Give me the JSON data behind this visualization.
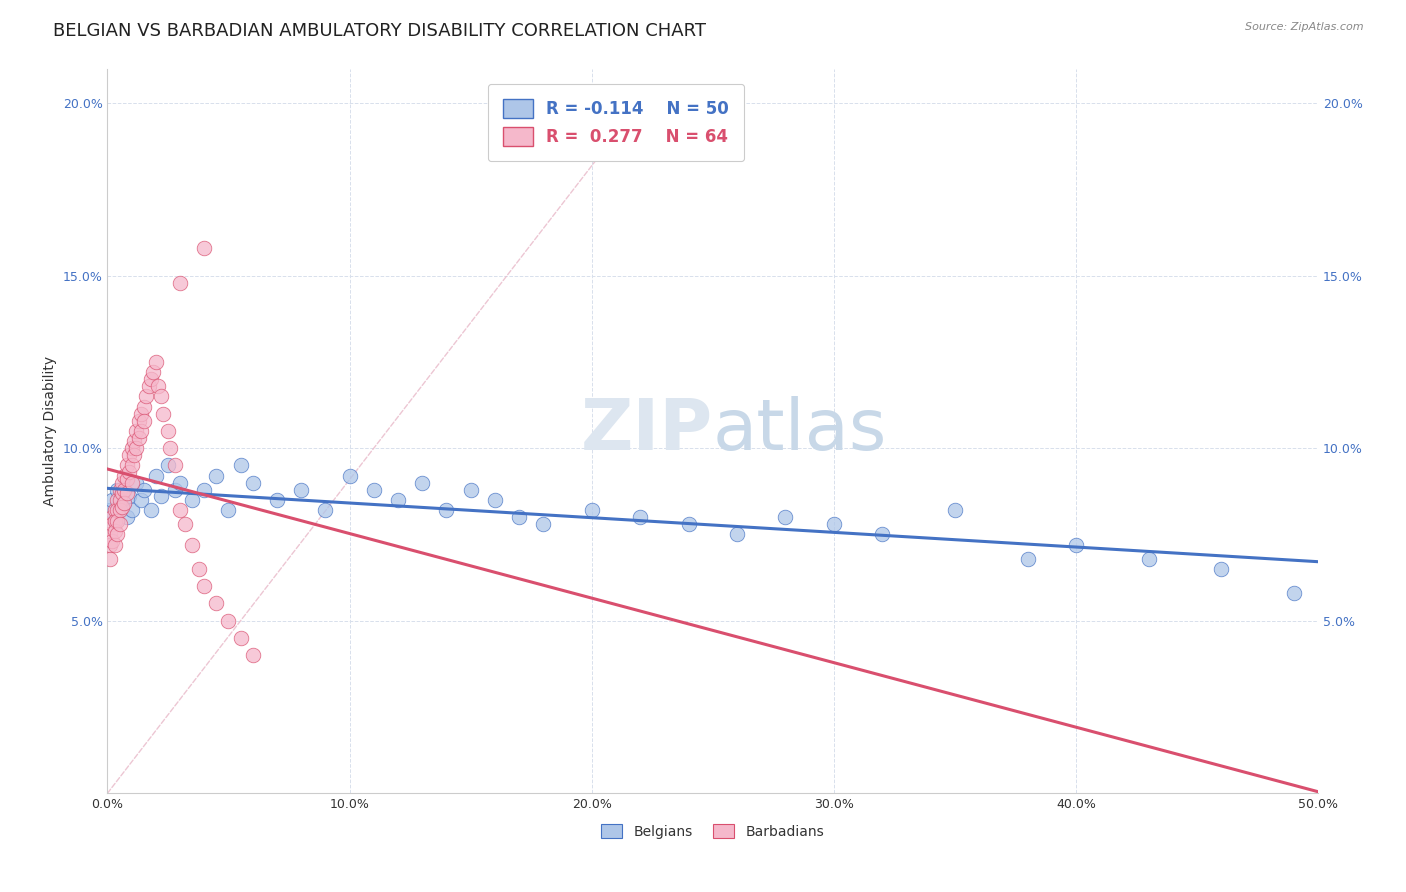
{
  "title": "BELGIAN VS BARBADIAN AMBULATORY DISABILITY CORRELATION CHART",
  "source": "Source: ZipAtlas.com",
  "xlabel": "",
  "ylabel": "Ambulatory Disability",
  "xlim": [
    0.0,
    0.5
  ],
  "ylim": [
    0.0,
    0.21
  ],
  "xticks": [
    0.0,
    0.1,
    0.2,
    0.3,
    0.4,
    0.5
  ],
  "xtick_labels": [
    "0.0%",
    "10.0%",
    "20.0%",
    "30.0%",
    "40.0%",
    "50.0%"
  ],
  "yticks": [
    0.05,
    0.1,
    0.15,
    0.2
  ],
  "ytick_labels": [
    "5.0%",
    "10.0%",
    "15.0%",
    "20.0%"
  ],
  "belgian_R": -0.114,
  "belgian_N": 50,
  "barbadian_R": 0.277,
  "barbadian_N": 64,
  "belgian_color": "#aec6e8",
  "barbadian_color": "#f5b8cb",
  "belgian_line_color": "#4472c4",
  "barbadian_line_color": "#d94f6e",
  "ref_line_color": "#e8b8c8",
  "background_color": "#ffffff",
  "grid_color": "#d8e0ec",
  "title_fontsize": 13,
  "axis_label_fontsize": 10,
  "tick_fontsize": 9,
  "legend_fontsize": 12,
  "belgians_x": [
    0.001,
    0.002,
    0.003,
    0.004,
    0.005,
    0.006,
    0.007,
    0.008,
    0.009,
    0.01,
    0.012,
    0.014,
    0.015,
    0.018,
    0.02,
    0.022,
    0.025,
    0.028,
    0.03,
    0.035,
    0.04,
    0.045,
    0.05,
    0.055,
    0.06,
    0.07,
    0.08,
    0.09,
    0.1,
    0.11,
    0.12,
    0.13,
    0.14,
    0.15,
    0.16,
    0.17,
    0.18,
    0.2,
    0.22,
    0.24,
    0.26,
    0.28,
    0.3,
    0.32,
    0.35,
    0.38,
    0.4,
    0.43,
    0.46,
    0.49
  ],
  "belgians_y": [
    0.082,
    0.085,
    0.079,
    0.088,
    0.083,
    0.087,
    0.084,
    0.08,
    0.086,
    0.082,
    0.09,
    0.085,
    0.088,
    0.082,
    0.092,
    0.086,
    0.095,
    0.088,
    0.09,
    0.085,
    0.088,
    0.092,
    0.082,
    0.095,
    0.09,
    0.085,
    0.088,
    0.082,
    0.092,
    0.088,
    0.085,
    0.09,
    0.082,
    0.088,
    0.085,
    0.08,
    0.078,
    0.082,
    0.08,
    0.078,
    0.075,
    0.08,
    0.078,
    0.075,
    0.082,
    0.068,
    0.072,
    0.068,
    0.065,
    0.058
  ],
  "barbadians_x": [
    0.001,
    0.001,
    0.001,
    0.002,
    0.002,
    0.002,
    0.003,
    0.003,
    0.003,
    0.003,
    0.004,
    0.004,
    0.004,
    0.004,
    0.005,
    0.005,
    0.005,
    0.005,
    0.006,
    0.006,
    0.006,
    0.007,
    0.007,
    0.007,
    0.008,
    0.008,
    0.008,
    0.009,
    0.009,
    0.01,
    0.01,
    0.01,
    0.011,
    0.011,
    0.012,
    0.012,
    0.013,
    0.013,
    0.014,
    0.014,
    0.015,
    0.015,
    0.016,
    0.017,
    0.018,
    0.019,
    0.02,
    0.021,
    0.022,
    0.023,
    0.025,
    0.026,
    0.028,
    0.03,
    0.032,
    0.035,
    0.038,
    0.04,
    0.045,
    0.05,
    0.055,
    0.06,
    0.03,
    0.04
  ],
  "barbadians_y": [
    0.075,
    0.072,
    0.068,
    0.08,
    0.078,
    0.073,
    0.082,
    0.079,
    0.076,
    0.072,
    0.085,
    0.082,
    0.079,
    0.075,
    0.088,
    0.085,
    0.082,
    0.078,
    0.09,
    0.087,
    0.083,
    0.092,
    0.088,
    0.084,
    0.095,
    0.091,
    0.087,
    0.098,
    0.093,
    0.1,
    0.095,
    0.09,
    0.102,
    0.098,
    0.105,
    0.1,
    0.108,
    0.103,
    0.11,
    0.105,
    0.112,
    0.108,
    0.115,
    0.118,
    0.12,
    0.122,
    0.125,
    0.118,
    0.115,
    0.11,
    0.105,
    0.1,
    0.095,
    0.082,
    0.078,
    0.072,
    0.065,
    0.06,
    0.055,
    0.05,
    0.045,
    0.04,
    0.148,
    0.158
  ]
}
